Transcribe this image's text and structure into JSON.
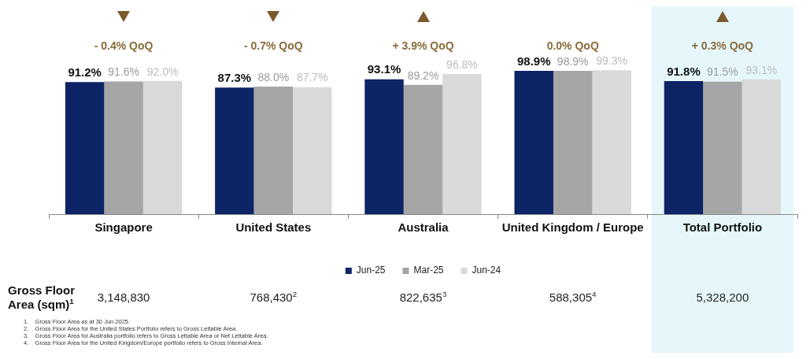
{
  "chart_data": {
    "type": "bar",
    "categories": [
      "Singapore",
      "United States",
      "Australia",
      "United Kingdom / Europe",
      "Total Portfolio"
    ],
    "series": [
      {
        "name": "Jun-25",
        "color": "#0d2466",
        "values": [
          91.2,
          87.3,
          93.1,
          98.9,
          91.8
        ],
        "value_labels": [
          "91.2%",
          "87.3%",
          "93.1%",
          "98.9%",
          "91.8%"
        ]
      },
      {
        "name": "Mar-25",
        "color": "#a6a6a6",
        "values": [
          91.6,
          88.0,
          89.2,
          98.9,
          91.5
        ],
        "value_labels": [
          "91.6%",
          "88.0%",
          "89.2%",
          "98.9%",
          "91.5%"
        ]
      },
      {
        "name": "Jun-24",
        "color": "#d9d9d9",
        "values": [
          92.0,
          87.7,
          96.8,
          99.3,
          93.1
        ],
        "value_labels": [
          "92.0%",
          "87.7%",
          "96.8%",
          "99.3%",
          "93.1%"
        ]
      }
    ],
    "legend": "bottom",
    "annotations": [
      "- 0.4% QoQ",
      "- 0.7% QoQ",
      "+ 3.9% QoQ",
      "0.0% QoQ",
      "+ 0.3% QoQ",
      "Gross Floor Area (sqm)$^{1}$",
      "3,148,830",
      "768,430$^{2}$",
      "822,635$^{3}$",
      "588,305$^{4}$",
      "5,328,200",
      "1.    Gross Floor Area as at 30 Jun 2025.",
      "2.    Gross Floor Area for the United States Portfolio refers to Gross Lettable Area.",
      "3.    Gross Floor Area for Australia portfolio refers to Gross Lettable Area or Net Lettable Area.",
      "4.    Gross Floor Area for the United Kingdom/Europe portfolio refers to Gross Internal Area."
    ]
  }
}
